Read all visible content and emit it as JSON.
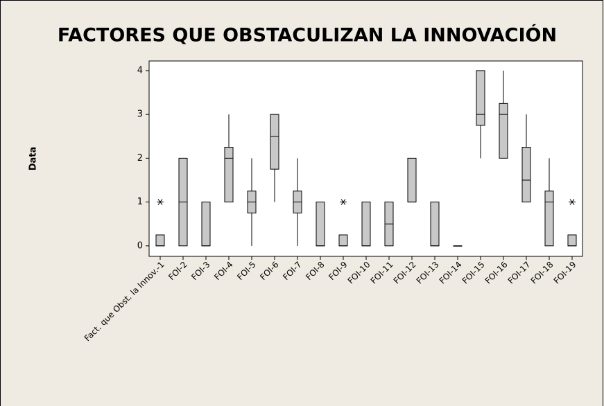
{
  "chart_data": {
    "type": "box",
    "title": "FACTORES QUE OBSTACULIZAN LA INNOVACIÓN",
    "y_label": "Data",
    "categories": [
      "Fact. que Obst. la Innov.-1",
      "FOI-2",
      "FOI-3",
      "FOI-4",
      "FOI-5",
      "FOI-6",
      "FOI-7",
      "FOI-8",
      "FOI-9",
      "FOI-10",
      "FOI-11",
      "FOI-12",
      "FOI-13",
      "FOI-14",
      "FOI-15",
      "FOI-16",
      "FOI-17",
      "FOI-18",
      "FOI-19"
    ],
    "min": [
      0,
      0,
      0,
      1,
      0,
      1,
      0,
      0,
      0,
      0,
      0,
      1,
      0,
      0,
      2,
      2,
      1,
      0,
      0
    ],
    "q1": [
      0,
      0,
      0,
      1,
      0.75,
      1.75,
      0.75,
      0,
      0,
      0,
      0,
      1,
      0,
      0,
      2.75,
      2,
      1,
      0,
      0
    ],
    "median": [
      0,
      1,
      0,
      2,
      1,
      2.5,
      1,
      0,
      0,
      0,
      0.5,
      1,
      0,
      0,
      3,
      3,
      1.5,
      1,
      0
    ],
    "q3": [
      0.25,
      2,
      1,
      2.25,
      1.25,
      3,
      1.25,
      1,
      0.25,
      1,
      1,
      2,
      1,
      0,
      4,
      3.25,
      2.25,
      1.25,
      0.25
    ],
    "max": [
      0.25,
      2,
      1,
      3,
      2,
      3,
      2,
      1,
      0.25,
      1,
      1,
      2,
      1,
      0,
      4,
      4,
      3,
      2,
      0.25
    ],
    "outliers": [
      [
        1
      ],
      [],
      [],
      [],
      [],
      [],
      [],
      [],
      [
        1
      ],
      [],
      [],
      [],
      [],
      [],
      [],
      [],
      [],
      [],
      [
        1
      ]
    ],
    "box_color": "#c8c8c8",
    "ylim": [
      -0.24,
      4.22
    ],
    "yticks": [
      0,
      1,
      2,
      3,
      4
    ]
  }
}
